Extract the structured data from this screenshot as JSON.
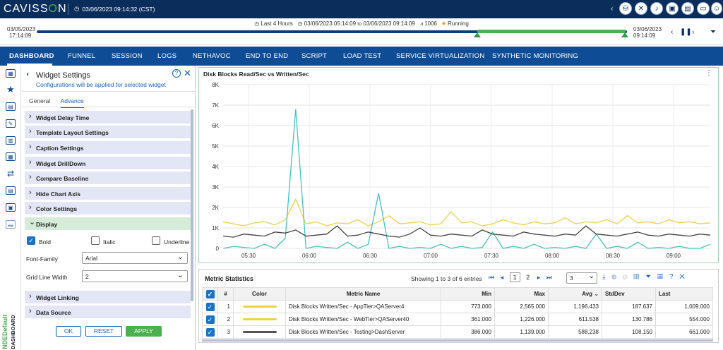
{
  "app": {
    "logo": "CAVISS",
    "logo_o": "O",
    "logo_n": "N",
    "clock": "03/06/2023 09:14:32 (CST)"
  },
  "timeline": {
    "range_label": "Last 4 Hours",
    "range_text": "03/06/2023 05:14:09",
    "range_to": "to",
    "range_end": "03/06/2023 09:14:09",
    "pulse": "1006",
    "status": "Running",
    "left_date": "03/05/2023",
    "left_time": "17:14:09",
    "right_date": "03/06/2023",
    "right_time": "09:14:09"
  },
  "nav": {
    "items": [
      "DASHBOARD",
      "FUNNEL",
      "SESSION",
      "LOGS",
      "NETHAVOC",
      "END TO END",
      "SCRIPT",
      "LOAD TEST",
      "SERVICE VIRTUALIZATION",
      "SYNTHETIC MONITORING"
    ]
  },
  "sidebar": {
    "vertical_top": "NDEDefault",
    "vertical_bottom": "DASHBOARD"
  },
  "widget": {
    "title": "Widget Settings",
    "subtitle": "Configurations will be applied for selected widget",
    "tab_general": "General",
    "tab_advance": "Advance",
    "sections": [
      "Widget Delay Time",
      "Template Layout Settings",
      "Caption Settings",
      "Widget DrillDown",
      "Compare Baseline",
      "Hide Chart Axis",
      "Color Settings",
      "Display"
    ],
    "bold": "Bold",
    "italic": "Italic",
    "underline": "Underline",
    "font_family_label": "Font-Family",
    "font_family_value": "Arial",
    "grid_line_label": "Grid Line Width",
    "grid_line_value": "2",
    "section_linking": "Widget Linking",
    "section_source": "Data Source",
    "ok": "OK",
    "reset": "RESET",
    "apply": "APPLY"
  },
  "chart_data": {
    "type": "line",
    "title": "Disk Blocks Read/Sec vs Written/Sec",
    "x_ticks": [
      "05:30",
      "06:00",
      "06:30",
      "07:00",
      "07:30",
      "08:00",
      "08:30",
      "09:00"
    ],
    "y_ticks": [
      "8K",
      "7K",
      "6K",
      "5K",
      "4K",
      "3K",
      "2K",
      "1K",
      "0"
    ],
    "ylim": [
      0,
      8000
    ],
    "series": [
      {
        "color": "#f2d046",
        "values": [
          1300,
          1200,
          1100,
          1250,
          1300,
          1150,
          1400,
          2400,
          1200,
          1300,
          1100,
          1250,
          1200,
          1400,
          1100,
          1300,
          1600,
          1200,
          1250,
          1300,
          1150,
          1200,
          1800,
          1250,
          1300,
          1100,
          1200,
          1400,
          1250,
          1150,
          1300,
          1200,
          1250,
          1500,
          1200,
          1300,
          1250,
          1400,
          1200,
          1600,
          1250,
          1300,
          1200,
          1400,
          1250,
          1300,
          1200,
          1250
        ]
      },
      {
        "color": "#40c4c0",
        "values": [
          0,
          100,
          50,
          0,
          200,
          0,
          500,
          6800,
          0,
          100,
          50,
          0,
          300,
          0,
          200,
          2700,
          0,
          100,
          0,
          50,
          0,
          200,
          0,
          100,
          0,
          50,
          800,
          0,
          100,
          0,
          200,
          0,
          50,
          0,
          100,
          0,
          700,
          0,
          100,
          0,
          300,
          0,
          50,
          0,
          100,
          0,
          0,
          200
        ]
      },
      {
        "color": "#444444",
        "values": [
          600,
          550,
          700,
          650,
          600,
          800,
          750,
          900,
          600,
          650,
          700,
          1100,
          600,
          650,
          800,
          700,
          600,
          550,
          700,
          1000,
          650,
          600,
          700,
          650,
          600,
          900,
          700,
          650,
          600,
          800,
          700,
          650,
          600,
          700,
          650,
          1100,
          700,
          650,
          600,
          700,
          800,
          650,
          600,
          700,
          650,
          600,
          700,
          650
        ]
      }
    ]
  },
  "stats": {
    "title": "Metric Statistics",
    "info": "Showing 1 to 3 of 6 entries",
    "page1": "1",
    "page2": "2",
    "page_size": "3",
    "headers": [
      "#",
      "Color",
      "Metric Name",
      "Min",
      "Max",
      "Avg",
      "StdDev",
      "Last"
    ],
    "rows": [
      {
        "n": "1",
        "color": "#f2d046",
        "name": "Disk Blocks Written/Sec - AppTier>QAServer4",
        "min": "773.000",
        "max": "2,565.000",
        "avg": "1,196.433",
        "std": "187.637",
        "last": "1,009.000"
      },
      {
        "n": "2",
        "color": "#f2d046",
        "name": "Disk Blocks Written/Sec - WebTier>QAServer40",
        "min": "361.000",
        "max": "1,226.000",
        "avg": "611.538",
        "std": "130.786",
        "last": "554.000"
      },
      {
        "n": "3",
        "color": "#555555",
        "name": "Disk Blocks Written/Sec - Testing>DashServer",
        "min": "386.000",
        "max": "1,139.000",
        "avg": "588.238",
        "std": "108.150",
        "last": "661.000"
      }
    ]
  }
}
